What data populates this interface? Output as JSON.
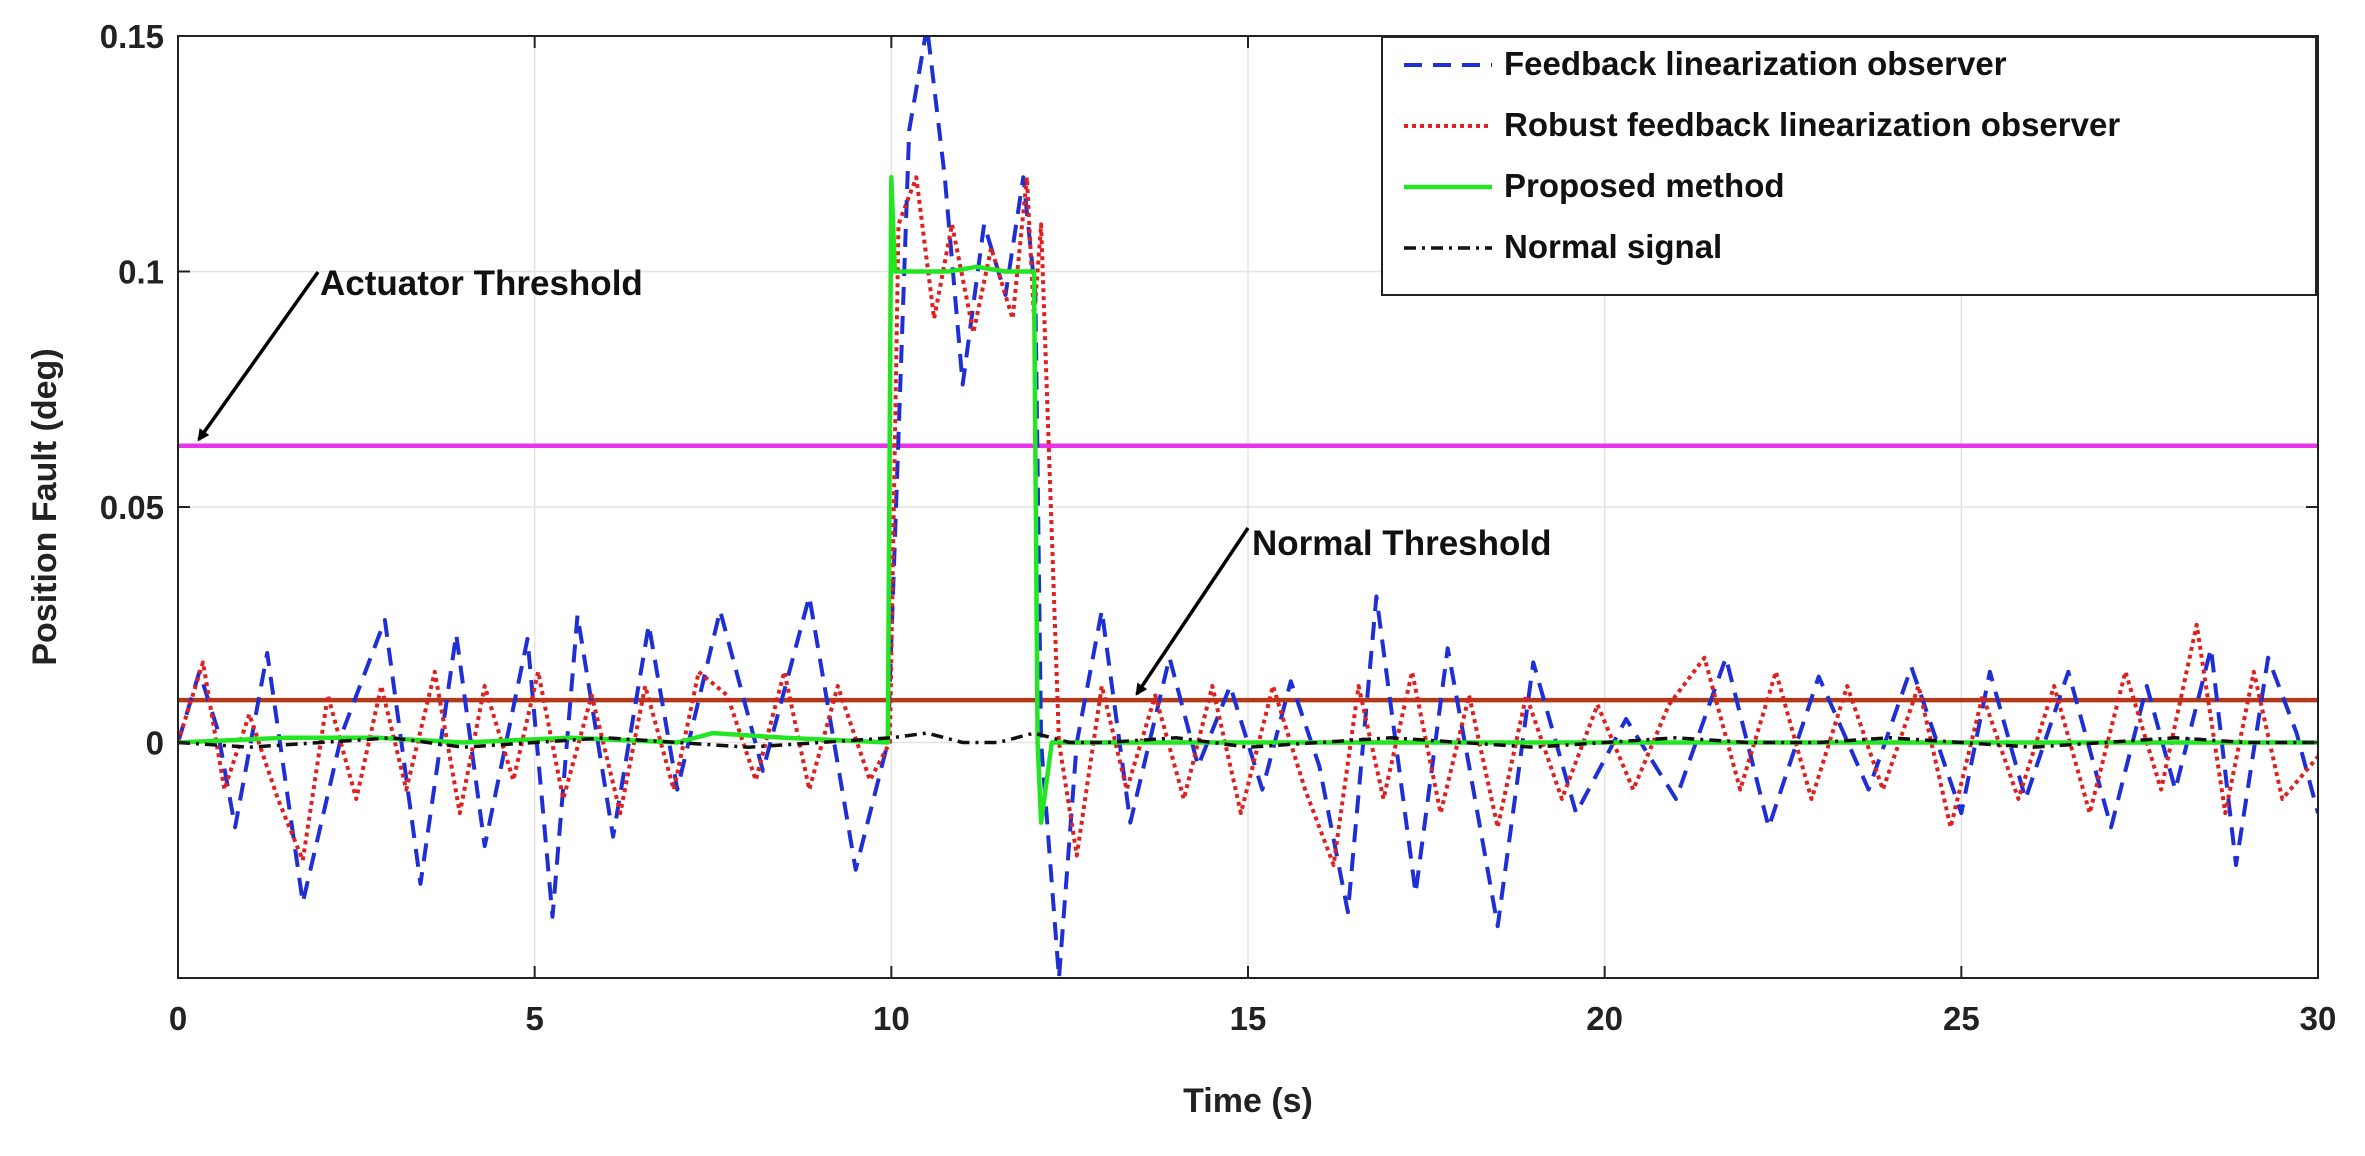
{
  "chart_data": {
    "type": "line",
    "title": "",
    "xlabel": "Time (s)",
    "ylabel": "Position Fault (deg)",
    "xlim": [
      0,
      30
    ],
    "ylim": [
      -0.05,
      0.15
    ],
    "xticks": [
      0,
      5,
      10,
      15,
      20,
      25,
      30
    ],
    "xtick_labels": [
      "0",
      "5",
      "10",
      "15",
      "20",
      "25",
      "30"
    ],
    "yticks": [
      0,
      0.05,
      0.1,
      0.15
    ],
    "ytick_labels": [
      "0",
      "0.05",
      "0.1",
      "0.15"
    ],
    "grid": true,
    "legend_position": "top-right",
    "series": [
      {
        "name": "Feedback linearization observer",
        "color": "#1f2fd6",
        "style": "dashed",
        "x": [
          0,
          0.3,
          0.55,
          0.8,
          1.25,
          1.75,
          2.3,
          2.9,
          3.4,
          3.9,
          4.3,
          4.9,
          5.25,
          5.6,
          6.1,
          6.6,
          7.0,
          7.6,
          8.2,
          8.85,
          9.5,
          9.95,
          10.25,
          10.5,
          10.75,
          11.0,
          11.3,
          11.6,
          11.85,
          12.02,
          12.1,
          12.35,
          12.6,
          12.95,
          13.35,
          13.9,
          14.3,
          14.75,
          15.2,
          15.6,
          16.0,
          16.4,
          16.8,
          17.35,
          17.8,
          18.1,
          18.5,
          19.0,
          19.6,
          20.3,
          21.0,
          21.7,
          22.3,
          23.0,
          23.7,
          24.3,
          25.0,
          25.4,
          25.9,
          26.5,
          27.1,
          27.6,
          28.0,
          28.5,
          28.85,
          29.3,
          29.7,
          30.0
        ],
        "y": [
          0,
          0.015,
          0.003,
          -0.018,
          0.019,
          -0.034,
          0.002,
          0.026,
          -0.03,
          0.023,
          -0.022,
          0.022,
          -0.037,
          0.027,
          -0.02,
          0.025,
          -0.01,
          0.028,
          -0.006,
          0.031,
          -0.027,
          0.0,
          0.13,
          0.152,
          0.12,
          0.076,
          0.11,
          0.095,
          0.12,
          0.095,
          0.0,
          -0.05,
          0.0,
          0.028,
          -0.017,
          0.018,
          -0.005,
          0.012,
          -0.01,
          0.013,
          -0.005,
          -0.036,
          0.031,
          -0.032,
          0.02,
          -0.005,
          -0.039,
          0.017,
          -0.015,
          0.005,
          -0.012,
          0.018,
          -0.018,
          0.014,
          -0.01,
          0.016,
          -0.015,
          0.015,
          -0.012,
          0.015,
          -0.018,
          0.012,
          -0.01,
          0.02,
          -0.026,
          0.018,
          0.002,
          -0.015
        ]
      },
      {
        "name": "Robust feedback linearization observer",
        "color": "#e02020",
        "style": "dotted",
        "x": [
          0,
          0.35,
          0.65,
          1.0,
          1.4,
          1.75,
          2.1,
          2.5,
          2.85,
          3.2,
          3.6,
          3.95,
          4.3,
          4.7,
          5.05,
          5.4,
          5.8,
          6.2,
          6.55,
          6.95,
          7.3,
          7.7,
          8.1,
          8.5,
          8.85,
          9.25,
          9.7,
          9.98,
          10.1,
          10.35,
          10.6,
          10.85,
          11.15,
          11.4,
          11.7,
          11.9,
          12.0,
          12.1,
          12.35,
          12.6,
          12.95,
          13.3,
          13.7,
          14.1,
          14.5,
          14.9,
          15.35,
          15.8,
          16.2,
          16.55,
          16.9,
          17.3,
          17.7,
          18.1,
          18.5,
          18.9,
          19.4,
          19.9,
          20.4,
          20.9,
          21.4,
          21.9,
          22.4,
          22.9,
          23.4,
          23.9,
          24.4,
          24.85,
          25.3,
          25.8,
          26.3,
          26.8,
          27.3,
          27.8,
          28.3,
          28.7,
          29.1,
          29.5,
          30.0
        ],
        "y": [
          0,
          0.017,
          -0.01,
          0.006,
          -0.012,
          -0.025,
          0.01,
          -0.012,
          0.012,
          -0.01,
          0.015,
          -0.015,
          0.012,
          -0.008,
          0.015,
          -0.012,
          0.01,
          -0.015,
          0.012,
          -0.01,
          0.015,
          0.01,
          -0.008,
          0.015,
          -0.01,
          0.012,
          -0.008,
          0.0,
          0.11,
          0.12,
          0.09,
          0.11,
          0.087,
          0.105,
          0.09,
          0.12,
          0.09,
          0.11,
          0.0,
          -0.024,
          0.012,
          -0.01,
          0.01,
          -0.012,
          0.012,
          -0.015,
          0.012,
          -0.01,
          -0.026,
          0.012,
          -0.012,
          0.015,
          -0.015,
          0.01,
          -0.018,
          0.01,
          -0.012,
          0.008,
          -0.01,
          0.008,
          0.018,
          -0.01,
          0.015,
          -0.012,
          0.012,
          -0.01,
          0.012,
          -0.018,
          0.01,
          -0.012,
          0.012,
          -0.015,
          0.015,
          -0.01,
          0.025,
          -0.015,
          0.015,
          -0.012,
          -0.003
        ]
      },
      {
        "name": "Proposed method",
        "color": "#22e622",
        "style": "solid",
        "x": [
          0,
          1.5,
          2.8,
          4.0,
          5.5,
          7.0,
          7.5,
          8.5,
          9.95,
          10.0,
          10.05,
          10.3,
          10.8,
          11.2,
          11.6,
          12.0,
          12.05,
          12.1,
          12.25,
          13.0,
          15.0,
          17.0,
          18.5,
          20.0,
          22.0,
          25.0,
          27.0,
          29.0,
          30.0
        ],
        "y": [
          0,
          0.001,
          0.001,
          0.0,
          0.001,
          0.0,
          0.002,
          0.001,
          0.0,
          0.12,
          0.1,
          0.1,
          0.1,
          0.101,
          0.1,
          0.1,
          0.0,
          -0.017,
          0.0,
          0.0,
          0.0,
          0.0,
          0.0,
          0.0,
          0.0,
          0.0,
          0.0,
          0.0,
          0.0
        ]
      },
      {
        "name": "Normal signal",
        "color": "#111111",
        "style": "dashdot",
        "x": [
          0,
          1.0,
          2.0,
          3.0,
          4.0,
          5.0,
          6.0,
          7.0,
          8.0,
          9.0,
          10.0,
          10.5,
          11.0,
          11.5,
          12.0,
          12.5,
          13.0,
          14.0,
          15.0,
          16.0,
          17.0,
          18.0,
          19.0,
          20.0,
          21.0,
          22.0,
          23.0,
          24.0,
          25.0,
          26.0,
          27.0,
          28.0,
          29.0,
          30.0
        ],
        "y": [
          0,
          -0.001,
          0.0,
          0.001,
          -0.001,
          0.0,
          0.001,
          0.0,
          -0.001,
          0.0,
          0.001,
          0.002,
          0.0,
          0.0,
          0.002,
          0.0,
          0.0,
          0.001,
          -0.001,
          0.0,
          0.001,
          0.0,
          -0.001,
          0.0,
          0.001,
          0.0,
          0.0,
          0.001,
          0.0,
          -0.001,
          0.0,
          0.001,
          0.0,
          0.0
        ]
      }
    ],
    "threshold_lines": [
      {
        "name": "Actuator Threshold",
        "value": 0.063,
        "color": "#e833e8"
      },
      {
        "name": "Normal Threshold",
        "value": 0.009,
        "color": "#b03a1a"
      }
    ],
    "annotations": [
      {
        "text": "Actuator Threshold",
        "arrow_to": [
          0.15,
          0.063
        ]
      },
      {
        "text": "Normal Threshold",
        "arrow_to": [
          13.3,
          0.009
        ]
      }
    ]
  }
}
